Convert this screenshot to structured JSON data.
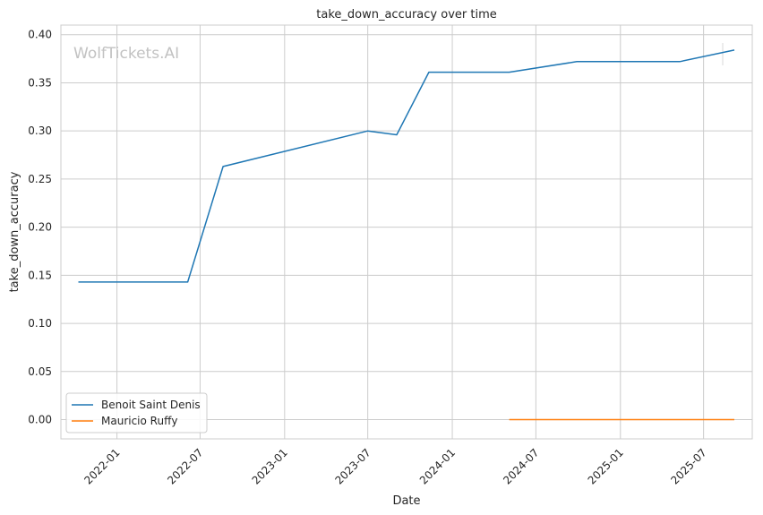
{
  "chart_data": {
    "type": "line",
    "title": "take_down_accuracy over time",
    "xlabel": "Date",
    "ylabel": "take_down_accuracy",
    "watermark": "WolfTickets.AI",
    "xlim": [
      "2021-09-01",
      "2025-10-15"
    ],
    "ylim": [
      -0.02,
      0.41
    ],
    "x_ticks": [
      "2022-01",
      "2022-07",
      "2023-01",
      "2023-07",
      "2024-01",
      "2024-07",
      "2025-01",
      "2025-07"
    ],
    "y_ticks": [
      0.0,
      0.05,
      0.1,
      0.15,
      0.2,
      0.25,
      0.3,
      0.35,
      0.4
    ],
    "grid": true,
    "legend_position": "lower-left",
    "series": [
      {
        "name": "Benoit Saint Denis",
        "color": "#1f77b4",
        "points": [
          {
            "x": "2021-10-09",
            "y": 0.143
          },
          {
            "x": "2022-06-04",
            "y": 0.143
          },
          {
            "x": "2022-08-20",
            "y": 0.263
          },
          {
            "x": "2023-07-01",
            "y": 0.3
          },
          {
            "x": "2023-09-02",
            "y": 0.296
          },
          {
            "x": "2023-11-11",
            "y": 0.361
          },
          {
            "x": "2024-05-04",
            "y": 0.361
          },
          {
            "x": "2024-09-28",
            "y": 0.372
          },
          {
            "x": "2025-05-10",
            "y": 0.372
          },
          {
            "x": "2025-09-06",
            "y": 0.384
          }
        ]
      },
      {
        "name": "Mauricio Ruffy",
        "color": "#ff7f0e",
        "points": [
          {
            "x": "2024-05-04",
            "y": 0.0
          },
          {
            "x": "2025-09-06",
            "y": 0.0
          }
        ]
      }
    ]
  }
}
